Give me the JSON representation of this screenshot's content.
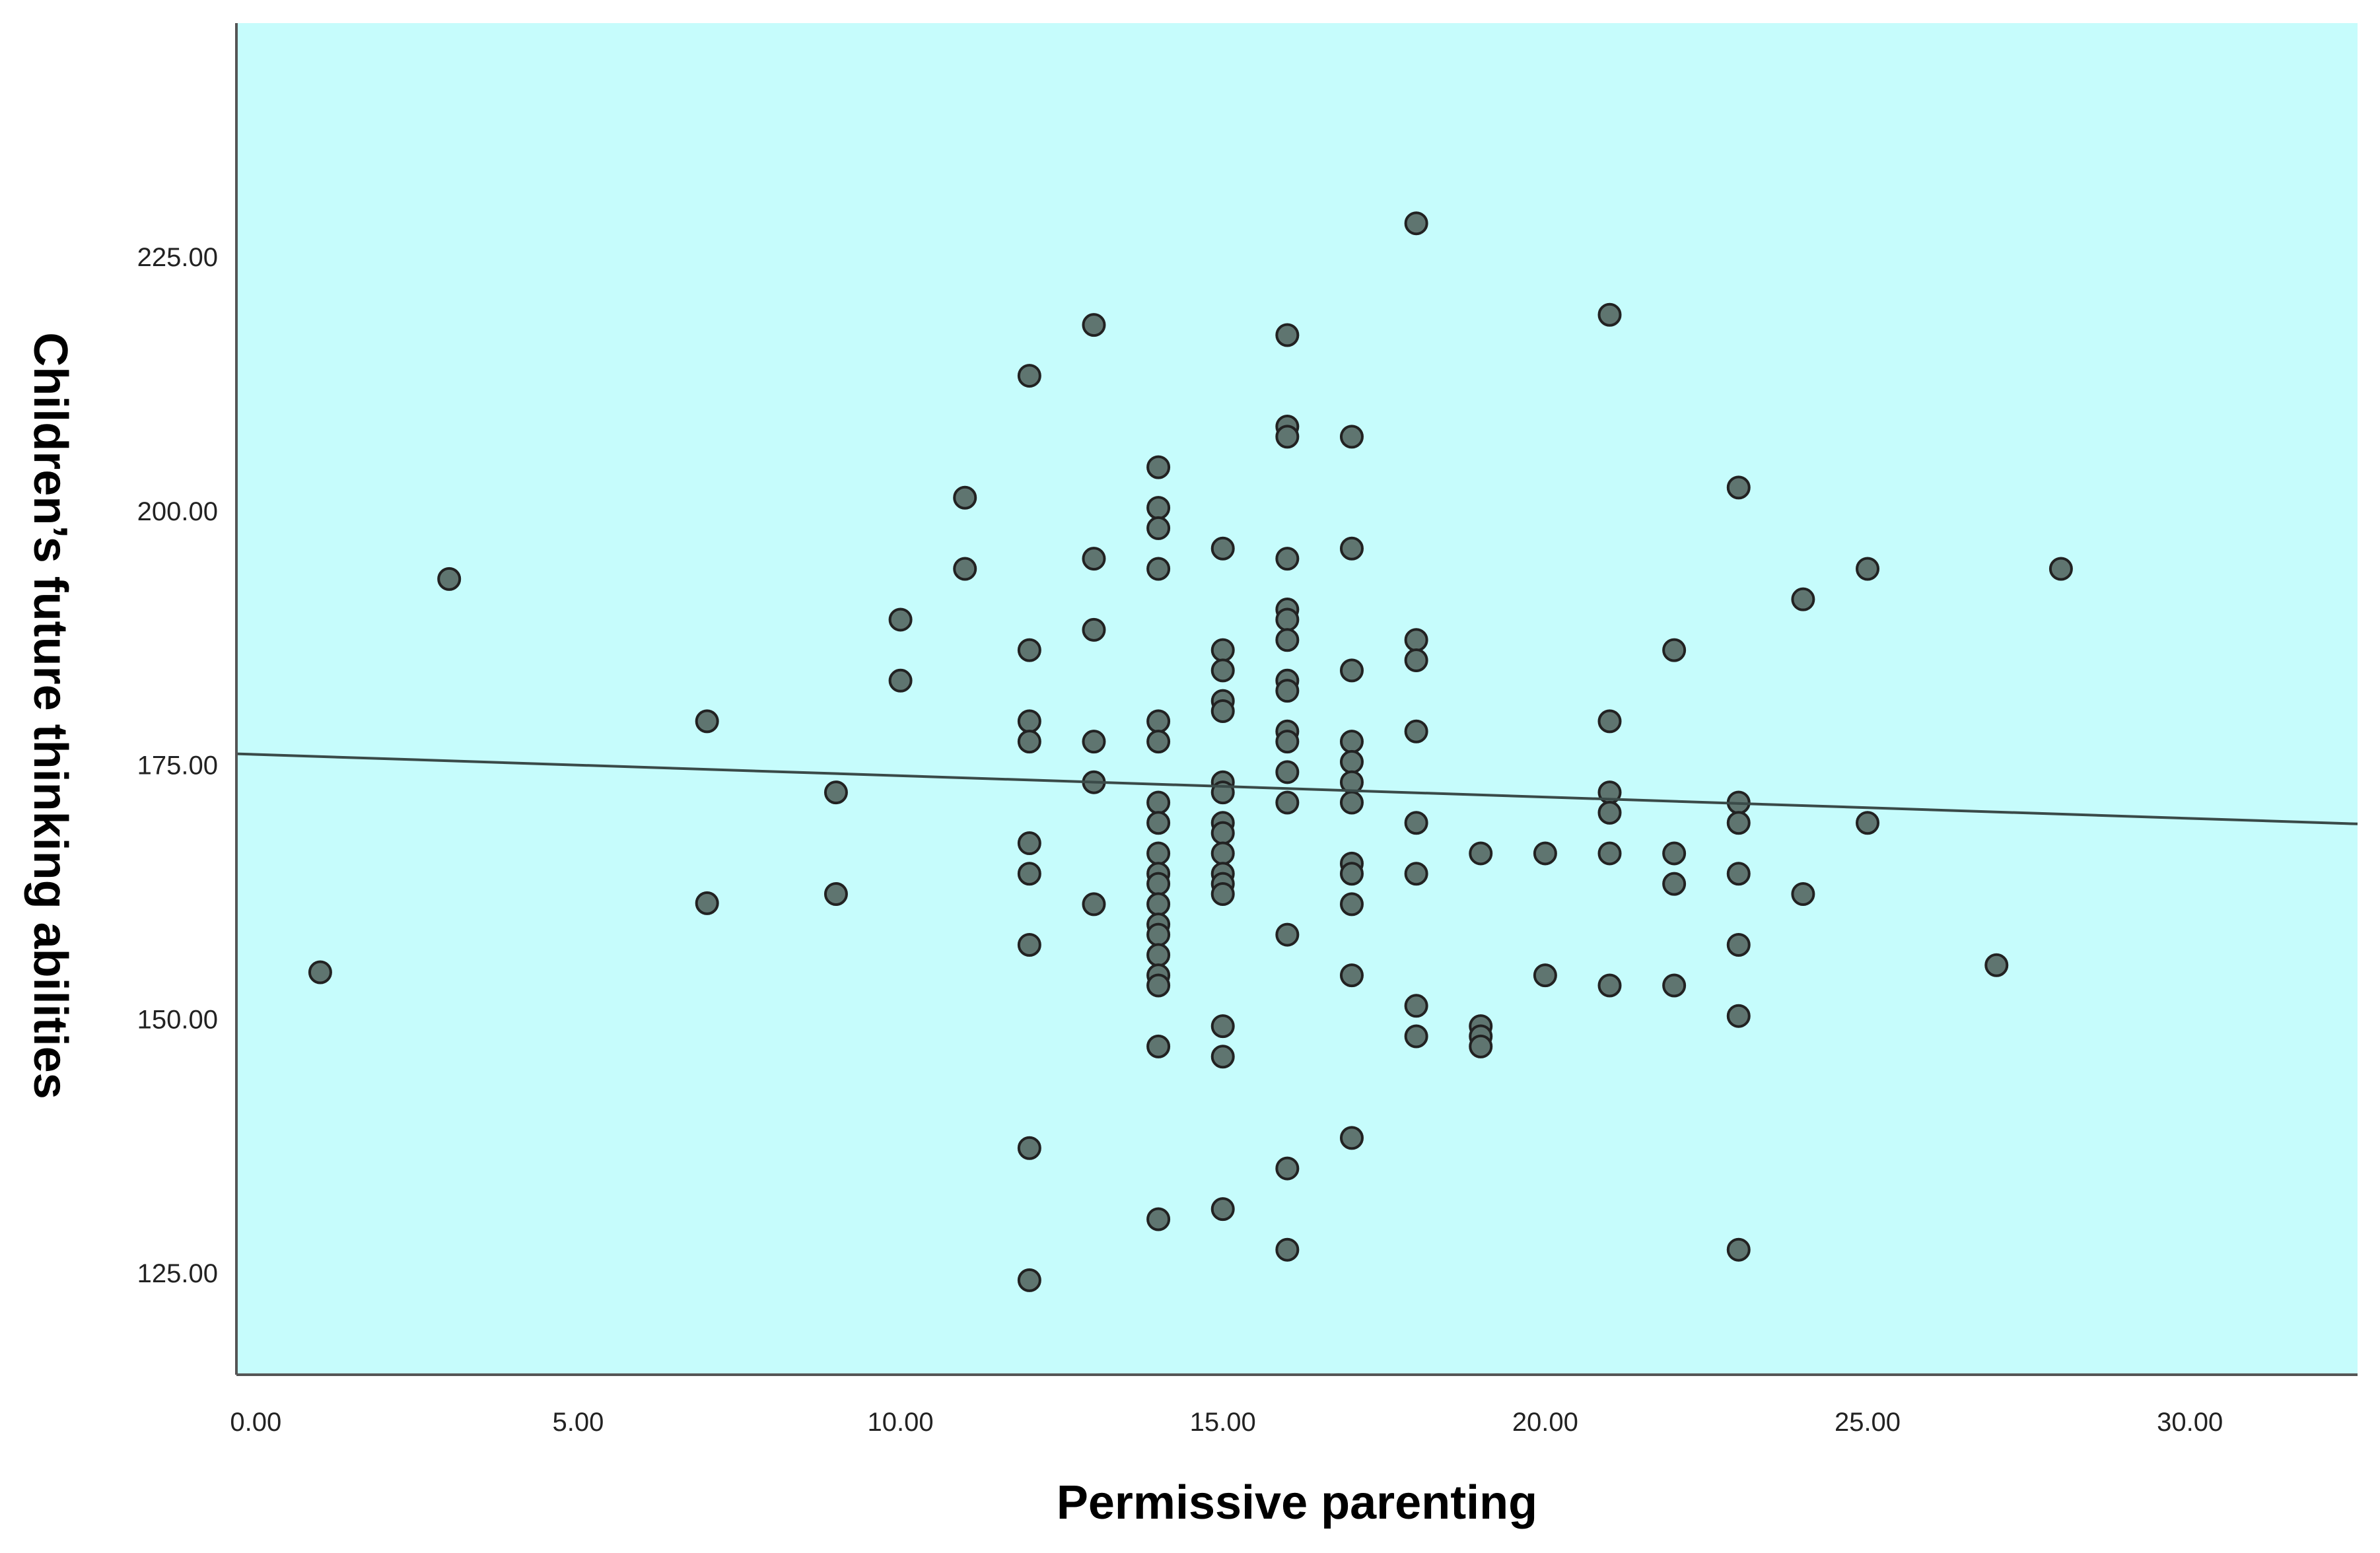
{
  "chart_data": {
    "type": "scatter",
    "title": "",
    "xlabel": "Permissive parenting",
    "ylabel": "Children’s future thinking abilities",
    "xlim": [
      -0.3,
      32.6
    ],
    "ylim": [
      115,
      248
    ],
    "xticks": [
      0,
      5,
      10,
      15,
      20,
      25,
      30
    ],
    "xtick_labels": [
      "0.00",
      "5.00",
      "10.00",
      "15.00",
      "20.00",
      "25.00",
      "30.00"
    ],
    "yticks": [
      125,
      150,
      175,
      200,
      225
    ],
    "ytick_labels": [
      "125.00",
      "150.00",
      "175.00",
      "200.00",
      "225.00"
    ],
    "grid": false,
    "legend": "none",
    "colors": {
      "plot_background": "#c6fcfc",
      "point_fill": "#5f7570",
      "point_stroke": "#222222",
      "fit_line": "#3a4a48",
      "axis": "#555555"
    },
    "fit_line": {
      "x": [
        -0.3,
        32.6
      ],
      "y": [
        176.1,
        169.2
      ]
    },
    "points": [
      {
        "x": 1,
        "y": 154.6
      },
      {
        "x": 3,
        "y": 193.3
      },
      {
        "x": 7,
        "y": 179.3
      },
      {
        "x": 7,
        "y": 161.4
      },
      {
        "x": 9,
        "y": 172.3
      },
      {
        "x": 9,
        "y": 162.3
      },
      {
        "x": 10,
        "y": 189.3
      },
      {
        "x": 10,
        "y": 183.3
      },
      {
        "x": 11,
        "y": 201.3
      },
      {
        "x": 11,
        "y": 194.3
      },
      {
        "x": 12,
        "y": 213.3
      },
      {
        "x": 12,
        "y": 186.3
      },
      {
        "x": 12,
        "y": 179.3
      },
      {
        "x": 12,
        "y": 177.3
      },
      {
        "x": 12,
        "y": 167.3
      },
      {
        "x": 12,
        "y": 164.3
      },
      {
        "x": 12,
        "y": 157.3
      },
      {
        "x": 12,
        "y": 137.3
      },
      {
        "x": 12,
        "y": 124.3
      },
      {
        "x": 13,
        "y": 218.3
      },
      {
        "x": 13,
        "y": 195.3
      },
      {
        "x": 13,
        "y": 188.3
      },
      {
        "x": 13,
        "y": 177.3
      },
      {
        "x": 13,
        "y": 173.3
      },
      {
        "x": 13,
        "y": 161.3
      },
      {
        "x": 14,
        "y": 204.3
      },
      {
        "x": 14,
        "y": 200.3
      },
      {
        "x": 14,
        "y": 198.3
      },
      {
        "x": 14,
        "y": 194.3
      },
      {
        "x": 14,
        "y": 179.3
      },
      {
        "x": 14,
        "y": 177.3
      },
      {
        "x": 14,
        "y": 171.3
      },
      {
        "x": 14,
        "y": 169.3
      },
      {
        "x": 14,
        "y": 166.3
      },
      {
        "x": 14,
        "y": 164.3
      },
      {
        "x": 14,
        "y": 163.3
      },
      {
        "x": 14,
        "y": 161.3
      },
      {
        "x": 14,
        "y": 159.3
      },
      {
        "x": 14,
        "y": 158.3
      },
      {
        "x": 14,
        "y": 156.3
      },
      {
        "x": 14,
        "y": 154.3
      },
      {
        "x": 14,
        "y": 153.3
      },
      {
        "x": 14,
        "y": 147.3
      },
      {
        "x": 14,
        "y": 130.3
      },
      {
        "x": 15,
        "y": 196.3
      },
      {
        "x": 15,
        "y": 186.3
      },
      {
        "x": 15,
        "y": 184.3
      },
      {
        "x": 15,
        "y": 181.3
      },
      {
        "x": 15,
        "y": 180.3
      },
      {
        "x": 15,
        "y": 173.3
      },
      {
        "x": 15,
        "y": 172.3
      },
      {
        "x": 15,
        "y": 169.3
      },
      {
        "x": 15,
        "y": 168.3
      },
      {
        "x": 15,
        "y": 166.3
      },
      {
        "x": 15,
        "y": 164.3
      },
      {
        "x": 15,
        "y": 163.3
      },
      {
        "x": 15,
        "y": 162.3
      },
      {
        "x": 15,
        "y": 149.3
      },
      {
        "x": 15,
        "y": 146.3
      },
      {
        "x": 15,
        "y": 131.3
      },
      {
        "x": 16,
        "y": 217.3
      },
      {
        "x": 16,
        "y": 208.3
      },
      {
        "x": 16,
        "y": 207.3
      },
      {
        "x": 16,
        "y": 195.3
      },
      {
        "x": 16,
        "y": 190.3
      },
      {
        "x": 16,
        "y": 189.3
      },
      {
        "x": 16,
        "y": 187.3
      },
      {
        "x": 16,
        "y": 183.3
      },
      {
        "x": 16,
        "y": 182.3
      },
      {
        "x": 16,
        "y": 178.3
      },
      {
        "x": 16,
        "y": 177.3
      },
      {
        "x": 16,
        "y": 174.3
      },
      {
        "x": 16,
        "y": 171.3
      },
      {
        "x": 16,
        "y": 158.3
      },
      {
        "x": 16,
        "y": 135.3
      },
      {
        "x": 16,
        "y": 127.3
      },
      {
        "x": 17,
        "y": 207.3
      },
      {
        "x": 17,
        "y": 196.3
      },
      {
        "x": 17,
        "y": 184.3
      },
      {
        "x": 17,
        "y": 177.3
      },
      {
        "x": 17,
        "y": 175.3
      },
      {
        "x": 17,
        "y": 173.3
      },
      {
        "x": 17,
        "y": 171.3
      },
      {
        "x": 17,
        "y": 165.3
      },
      {
        "x": 17,
        "y": 164.3
      },
      {
        "x": 17,
        "y": 161.3
      },
      {
        "x": 17,
        "y": 154.3
      },
      {
        "x": 17,
        "y": 138.3
      },
      {
        "x": 18,
        "y": 228.3
      },
      {
        "x": 18,
        "y": 187.3
      },
      {
        "x": 18,
        "y": 185.3
      },
      {
        "x": 18,
        "y": 178.3
      },
      {
        "x": 18,
        "y": 169.3
      },
      {
        "x": 18,
        "y": 164.3
      },
      {
        "x": 18,
        "y": 151.3
      },
      {
        "x": 18,
        "y": 148.3
      },
      {
        "x": 19,
        "y": 166.3
      },
      {
        "x": 19,
        "y": 149.3
      },
      {
        "x": 19,
        "y": 148.3
      },
      {
        "x": 19,
        "y": 147.3
      },
      {
        "x": 20,
        "y": 166.3
      },
      {
        "x": 20,
        "y": 154.3
      },
      {
        "x": 21,
        "y": 219.3
      },
      {
        "x": 21,
        "y": 179.3
      },
      {
        "x": 21,
        "y": 172.3
      },
      {
        "x": 21,
        "y": 170.3
      },
      {
        "x": 21,
        "y": 166.3
      },
      {
        "x": 21,
        "y": 153.3
      },
      {
        "x": 22,
        "y": 186.3
      },
      {
        "x": 22,
        "y": 166.3
      },
      {
        "x": 22,
        "y": 163.3
      },
      {
        "x": 22,
        "y": 153.3
      },
      {
        "x": 23,
        "y": 202.3
      },
      {
        "x": 23,
        "y": 171.3
      },
      {
        "x": 23,
        "y": 169.3
      },
      {
        "x": 23,
        "y": 164.3
      },
      {
        "x": 23,
        "y": 157.3
      },
      {
        "x": 23,
        "y": 150.3
      },
      {
        "x": 23,
        "y": 127.3
      },
      {
        "x": 24,
        "y": 191.3
      },
      {
        "x": 24,
        "y": 162.3
      },
      {
        "x": 25,
        "y": 194.3
      },
      {
        "x": 25,
        "y": 169.3
      },
      {
        "x": 27,
        "y": 155.3
      },
      {
        "x": 28,
        "y": 194.3
      }
    ]
  }
}
